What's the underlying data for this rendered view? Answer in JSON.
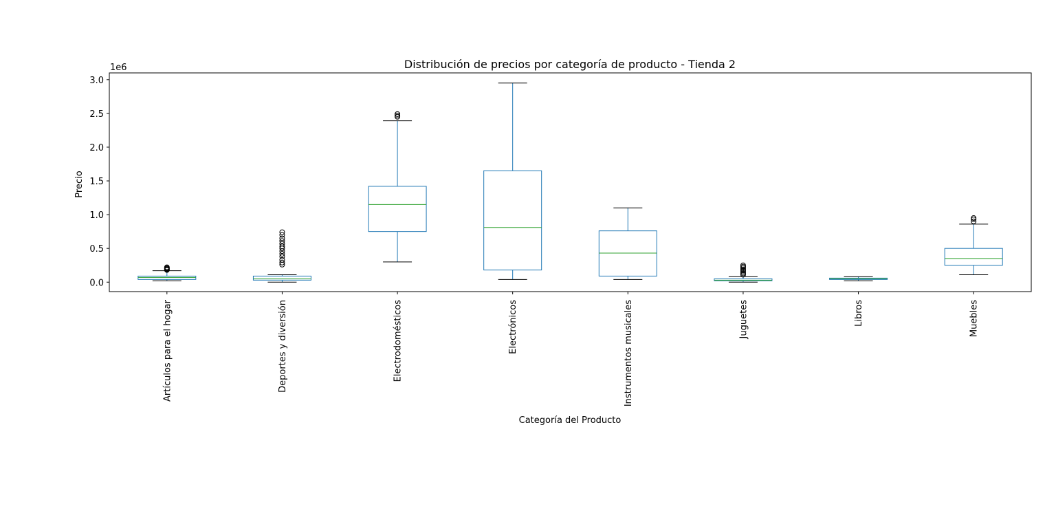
{
  "chart_data": {
    "type": "box",
    "title": "Distribución de precios por categoría de producto - Tienda 2",
    "xlabel": "Categoría del Producto",
    "ylabel": "Precio",
    "y_offset_label": "1e6",
    "ylim": [
      -0.14,
      3.1
    ],
    "y_ticks": [
      0.0,
      0.5,
      1.0,
      1.5,
      2.0,
      2.5,
      3.0
    ],
    "y_tick_labels": [
      "0.0",
      "0.5",
      "1.0",
      "1.5",
      "2.0",
      "2.5",
      "3.0"
    ],
    "x_tick_rotation": "vertical",
    "grid": false,
    "legend": "none",
    "colors": {
      "box": "#1f77b4",
      "median": "#2ca02c",
      "caps": "#000000",
      "fliers": "#000000"
    },
    "categories": [
      "Artículos para el hogar",
      "Deportes y diversión",
      "Electrodomésticos",
      "Electrónicos",
      "Instrumentos musicales",
      "Juguetes",
      "Libros",
      "Muebles"
    ],
    "boxes": [
      {
        "whislo": 0.02,
        "q1": 0.04,
        "med": 0.07,
        "q3": 0.09,
        "whishi": 0.17,
        "fliers": [
          0.18,
          0.19,
          0.2,
          0.21,
          0.22
        ]
      },
      {
        "whislo": 0.0,
        "q1": 0.03,
        "med": 0.05,
        "q3": 0.09,
        "whishi": 0.11,
        "fliers": [
          0.26,
          0.29,
          0.33,
          0.38,
          0.42,
          0.46,
          0.5,
          0.53,
          0.57,
          0.61,
          0.65,
          0.7,
          0.74
        ]
      },
      {
        "whislo": 0.3,
        "q1": 0.75,
        "med": 1.15,
        "q3": 1.42,
        "whishi": 2.39,
        "fliers": [
          2.45,
          2.47,
          2.49
        ]
      },
      {
        "whislo": 0.04,
        "q1": 0.18,
        "med": 0.81,
        "q3": 1.65,
        "whishi": 2.95,
        "fliers": []
      },
      {
        "whislo": 0.04,
        "q1": 0.09,
        "med": 0.43,
        "q3": 0.76,
        "whishi": 1.1,
        "fliers": []
      },
      {
        "whislo": 0.0,
        "q1": 0.02,
        "med": 0.03,
        "q3": 0.05,
        "whishi": 0.08,
        "fliers": [
          0.11,
          0.13,
          0.15,
          0.17,
          0.19,
          0.21,
          0.23,
          0.25
        ]
      },
      {
        "whislo": 0.02,
        "q1": 0.04,
        "med": 0.05,
        "q3": 0.06,
        "whishi": 0.08,
        "fliers": []
      },
      {
        "whislo": 0.11,
        "q1": 0.25,
        "med": 0.35,
        "q3": 0.5,
        "whishi": 0.86,
        "fliers": [
          0.9,
          0.93,
          0.95
        ]
      }
    ]
  }
}
